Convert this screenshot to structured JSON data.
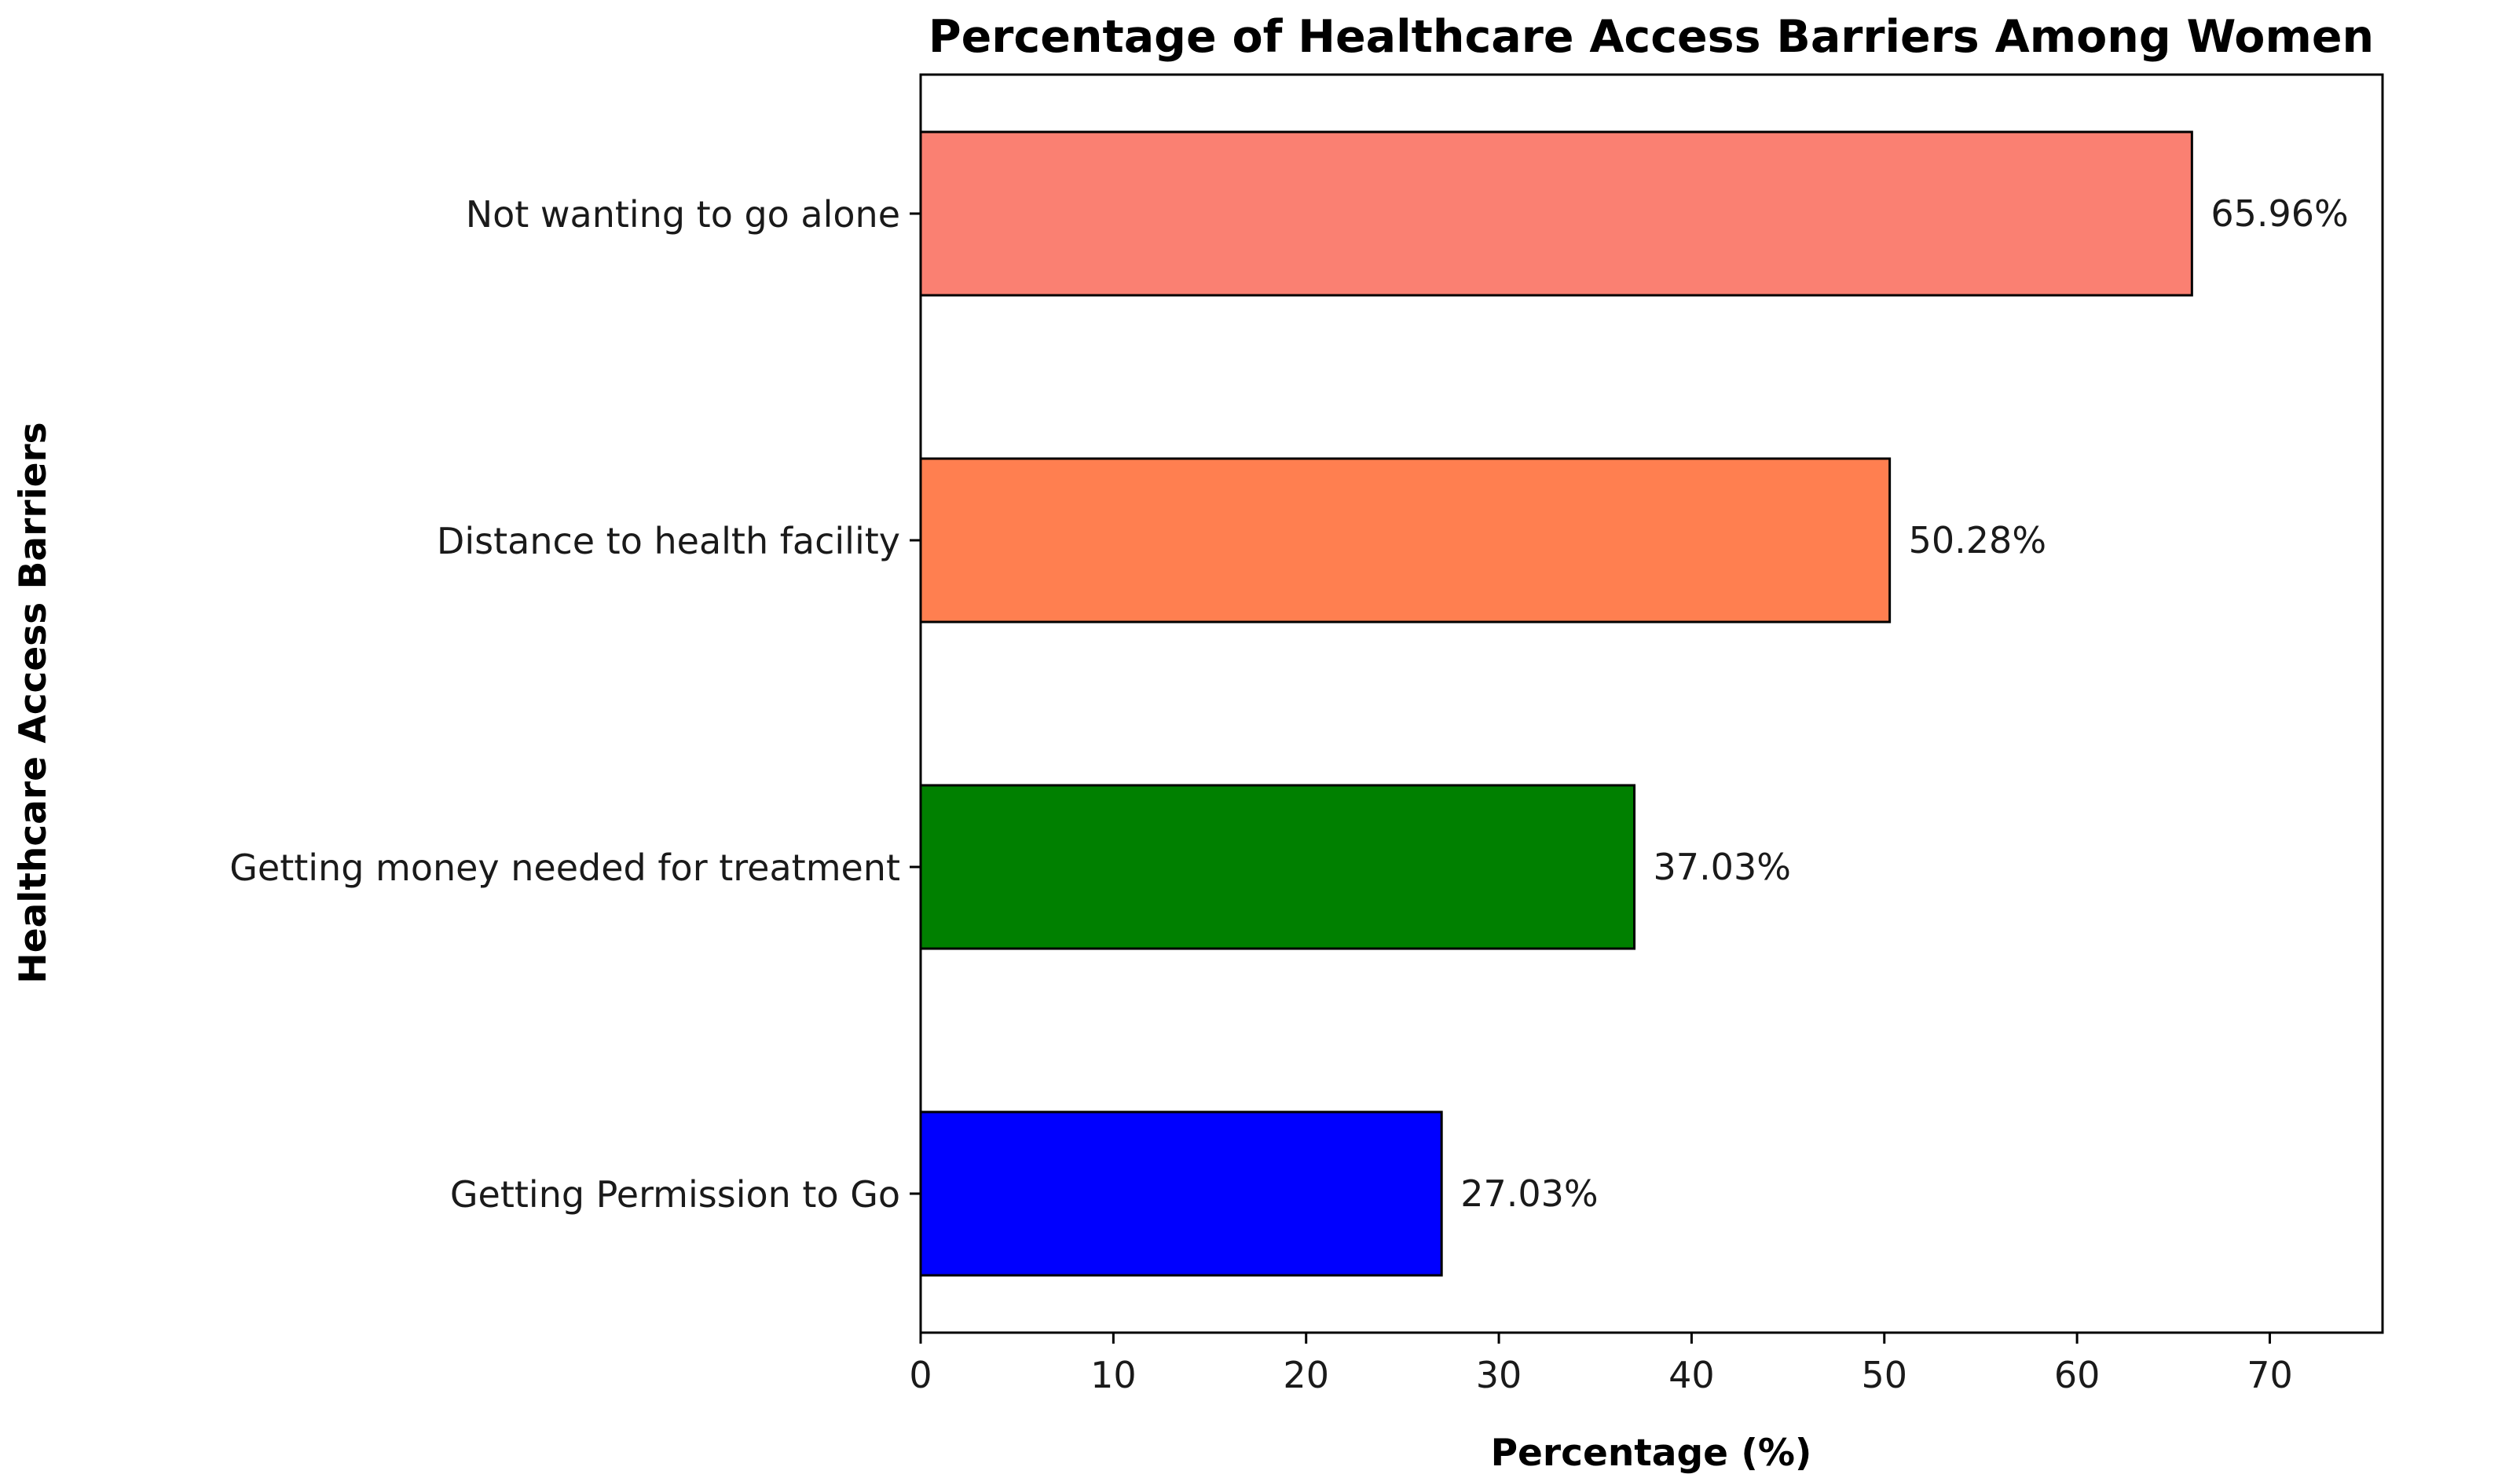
{
  "chart_data": {
    "type": "bar",
    "orientation": "horizontal",
    "title": "Percentage of Healthcare Access Barriers Among Women",
    "xlabel": "Percentage (%)",
    "ylabel": "Healthcare Access Barriers",
    "categories": [
      "Not wanting to go alone",
      "Distance to health facility",
      "Getting money needed for treatment",
      "Getting Permission to Go"
    ],
    "values": [
      65.96,
      50.28,
      37.03,
      27.03
    ],
    "value_labels": [
      "65.96%",
      "50.28%",
      "37.03%",
      "27.03%"
    ],
    "colors": [
      "#fa8072",
      "#ff7f50",
      "#008000",
      "#0000ff"
    ],
    "edge_color": "#000000",
    "xlim": [
      0,
      75.85
    ],
    "xticks": [
      0,
      10,
      20,
      30,
      40,
      50,
      60,
      70
    ],
    "xtick_labels": [
      "0",
      "10",
      "20",
      "30",
      "40",
      "50",
      "60",
      "70"
    ],
    "grid": false,
    "legend": null
  }
}
